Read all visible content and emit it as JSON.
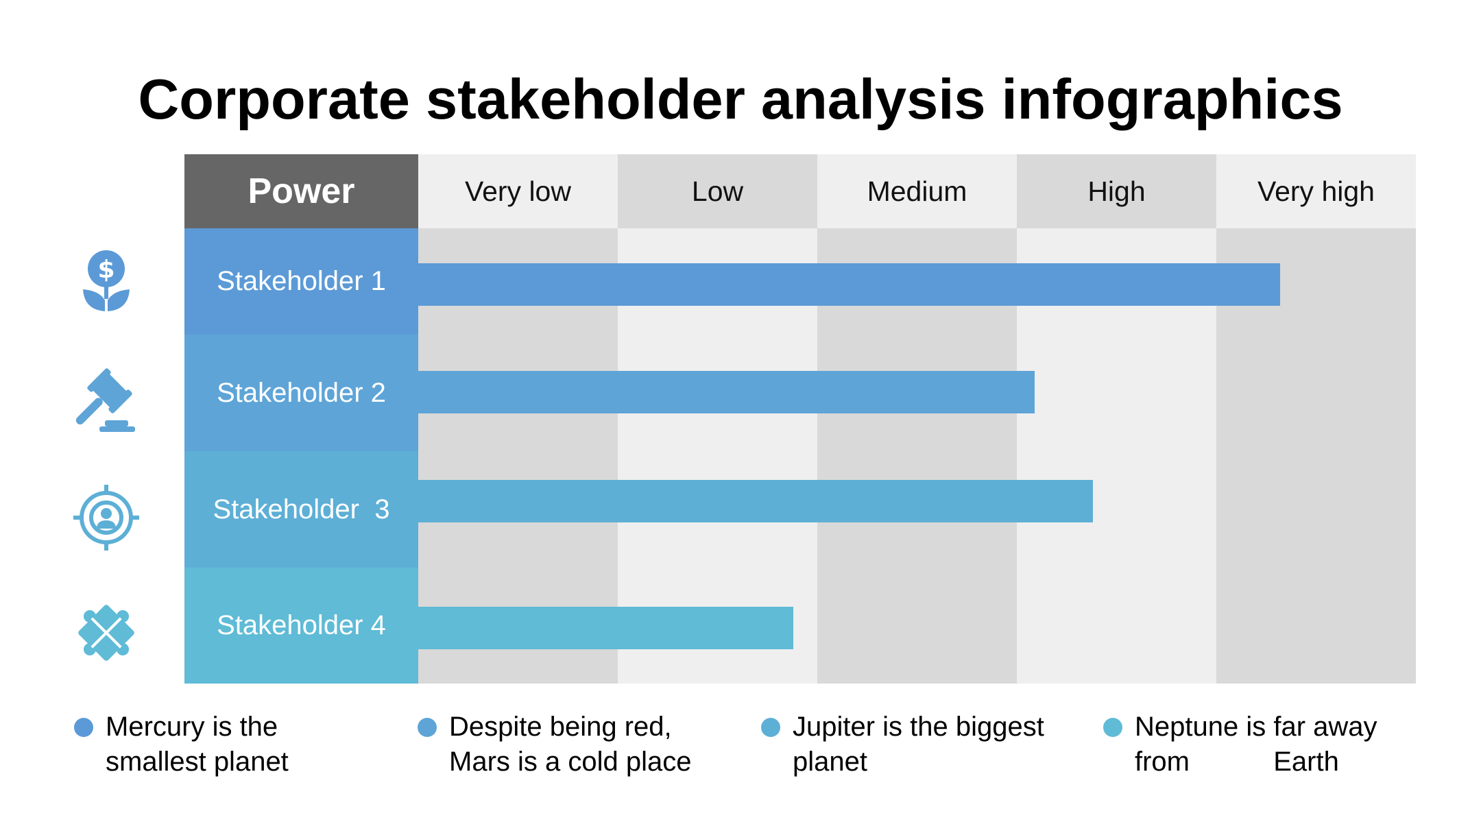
{
  "title": "Corporate stakeholder analysis infographics",
  "chart_data": {
    "type": "bar",
    "orientation": "horizontal",
    "axis_title": "Power",
    "levels": [
      "Very low",
      "Low",
      "Medium",
      "High",
      "Very high"
    ],
    "xlim": [
      0,
      5
    ],
    "categories": [
      "Stakeholder 1",
      "Stakeholder 2",
      "Stakeholder  3",
      "Stakeholder 4"
    ],
    "values": [
      4.32,
      3.09,
      3.38,
      1.88
    ]
  },
  "rows": [
    {
      "label": "Stakeholder 1",
      "icon": "money-plant-icon",
      "color": "#5b9ad6",
      "bar_color": "#5b9ad6"
    },
    {
      "label": "Stakeholder 2",
      "icon": "gavel-icon",
      "color": "#5ea4d7",
      "bar_color": "#5ea4d7"
    },
    {
      "label": "Stakeholder  3",
      "icon": "target-user-icon",
      "color": "#5dafd6",
      "bar_color": "#5dafd6"
    },
    {
      "label": "Stakeholder 4",
      "icon": "puzzle-icon",
      "color": "#5fbbd6",
      "bar_color": "#5fbbd6"
    }
  ],
  "colors": {
    "power_header": "#666666",
    "level_header_light": "#efefef",
    "level_header_dark": "#d9d9d9",
    "column_light": "#efefef",
    "column_dark": "#d9d9d9"
  },
  "legend": [
    {
      "line1": "Mercury is the",
      "line2": "smallest planet",
      "color": "#5b9ad6"
    },
    {
      "line1": "Despite being red,",
      "line2": "Mars is a cold place",
      "color": "#5ea4d7"
    },
    {
      "line1": "Jupiter is the biggest",
      "line2": "planet",
      "color": "#5dafd6"
    },
    {
      "line1": "Neptune is far away",
      "line2": "from           Earth",
      "color": "#5fbbd6"
    }
  ]
}
